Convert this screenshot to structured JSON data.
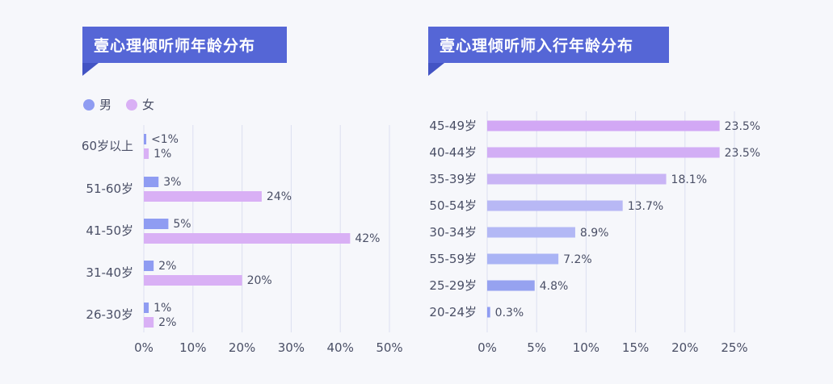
{
  "left_title": "壹心理倾听师年龄分布",
  "right_title": "壹心理倾听师入行年龄分布",
  "colors": {
    "banner": "#5566d6",
    "banner_tail": "#4354c4",
    "male": "#8f9cf2",
    "female": "#d9b0f5",
    "grid": "#dcdff0",
    "text": "#4a4f66"
  },
  "chart_data": [
    {
      "type": "bar",
      "orientation": "horizontal",
      "title": "壹心理倾听师年龄分布",
      "categories": [
        "60岁以上",
        "51-60岁",
        "41-50岁",
        "31-40岁",
        "26-30岁"
      ],
      "series": [
        {
          "name": "男",
          "values": [
            0.5,
            3,
            5,
            2,
            1
          ],
          "labels": [
            "<1%",
            "3%",
            "5%",
            "2%",
            "1%"
          ]
        },
        {
          "name": "女",
          "values": [
            1,
            24,
            42,
            20,
            2
          ],
          "labels": [
            "1%",
            "24%",
            "42%",
            "20%",
            "2%"
          ]
        }
      ],
      "xlim": [
        0,
        50
      ],
      "ticks": [
        "0%",
        "10%",
        "20%",
        "30%",
        "40%",
        "50%"
      ],
      "legend": "top-left",
      "grid": true
    },
    {
      "type": "bar",
      "orientation": "horizontal",
      "title": "壹心理倾听师入行年龄分布",
      "categories": [
        "45-49岁",
        "40-44岁",
        "35-39岁",
        "50-54岁",
        "30-34岁",
        "55-59岁",
        "25-29岁",
        "20-24岁"
      ],
      "values": [
        23.5,
        23.5,
        18.1,
        13.7,
        8.9,
        7.2,
        4.8,
        0.3
      ],
      "labels": [
        "23.5%",
        "23.5%",
        "18.1%",
        "13.7%",
        "8.9%",
        "7.2%",
        "4.8%",
        "0.3%"
      ],
      "bar_colors": [
        "#d2a8f5",
        "#d2aef5",
        "#c9b4f5",
        "#b8b8f5",
        "#b3b8f5",
        "#aab4f5",
        "#96a2f0",
        "#8f9cf2"
      ],
      "xlim": [
        0,
        25
      ],
      "ticks": [
        "0%",
        "5%",
        "10%",
        "15%",
        "20%",
        "25%"
      ],
      "grid": true
    }
  ]
}
